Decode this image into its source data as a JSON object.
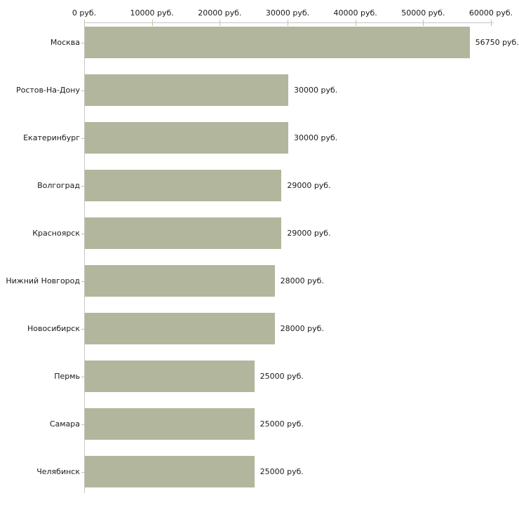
{
  "chart_data": {
    "type": "bar",
    "orientation": "horizontal",
    "title": "",
    "xlabel": "",
    "ylabel": "",
    "unit": "руб.",
    "xlim": [
      0,
      60000
    ],
    "grid": false,
    "legend": null,
    "categories": [
      "Москва",
      "Ростов-На-Дону",
      "Екатеринбург",
      "Волгоград",
      "Красноярск",
      "Нижний Новгород",
      "Новосибирск",
      "Пермь",
      "Самара",
      "Челябинск"
    ],
    "values": [
      56750,
      30000,
      30000,
      29000,
      29000,
      28000,
      28000,
      25000,
      25000,
      25000
    ],
    "value_labels": [
      "56750 руб.",
      "30000 руб.",
      "30000 руб.",
      "29000 руб.",
      "29000 руб.",
      "28000 руб.",
      "28000 руб.",
      "25000 руб.",
      "25000 руб.",
      "25000 руб."
    ],
    "x_ticks": [
      {
        "value": 0,
        "label": "0 руб."
      },
      {
        "value": 10000,
        "label": "10000 руб."
      },
      {
        "value": 20000,
        "label": "20000 руб."
      },
      {
        "value": 30000,
        "label": "30000 руб."
      },
      {
        "value": 40000,
        "label": "40000 руб."
      },
      {
        "value": 50000,
        "label": "50000 руб."
      },
      {
        "value": 60000,
        "label": "60000 руб."
      }
    ],
    "colors": {
      "bar": "#b1b69d",
      "axis": "#c6c6c6",
      "tick": "#c3c39c",
      "text": "#1a1a1a",
      "background": "#ffffff"
    }
  }
}
